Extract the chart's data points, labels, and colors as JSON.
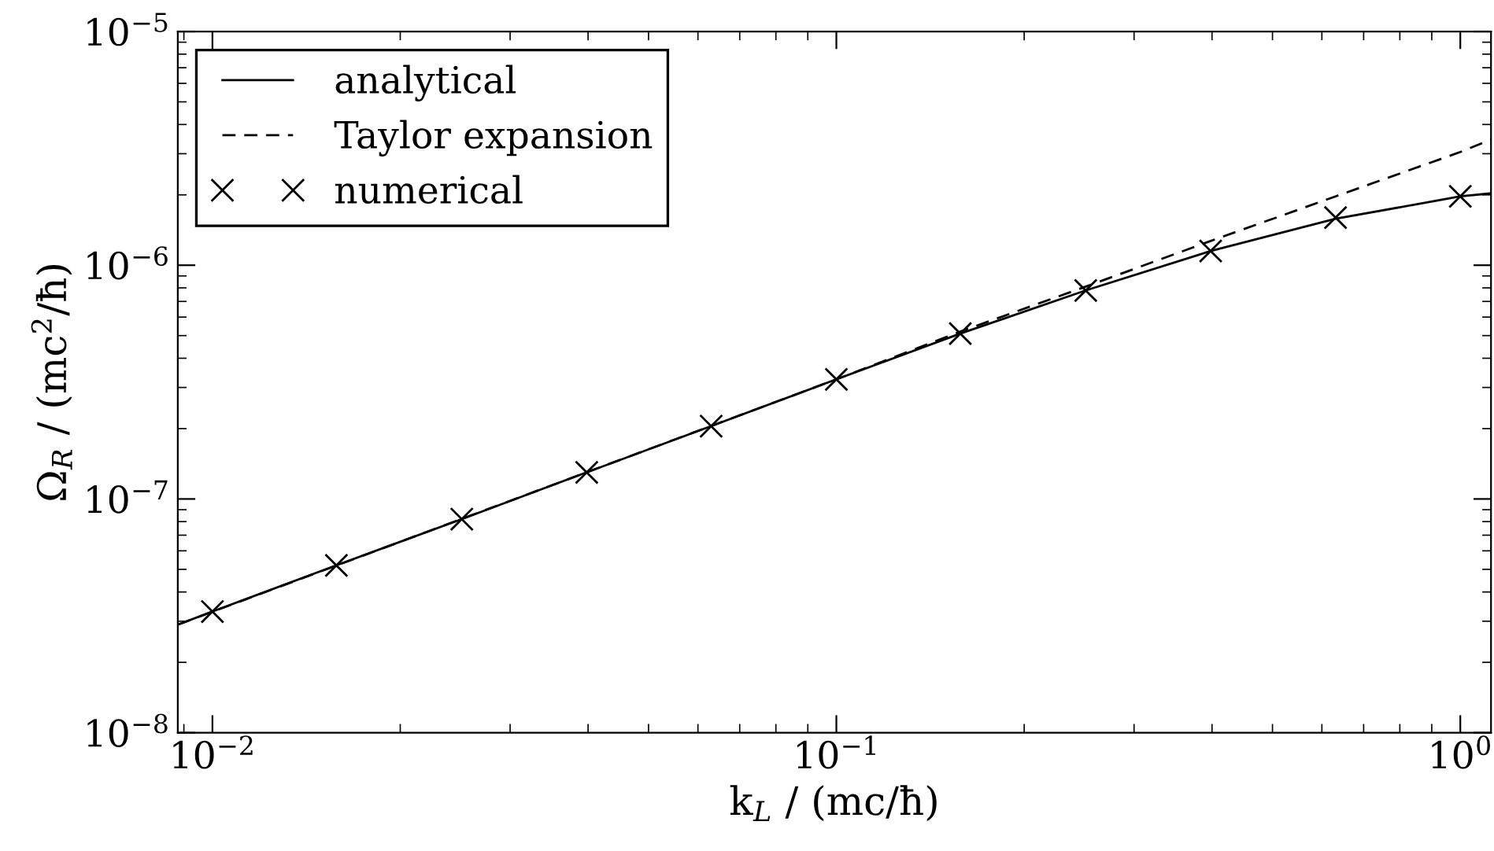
{
  "chart_data": {
    "type": "line",
    "xlabel": "k$_{L}$ / (mc/ħ)",
    "ylabel": "Ω$_{R}$ / (mc$^{2}$/ħ)",
    "log": "xy",
    "xlim": [
      0.0088,
      1.12
    ],
    "ylim": [
      1e-08,
      1e-05
    ],
    "xticks": [
      {
        "value": 0.01,
        "label": "10$^{−2}$"
      },
      {
        "value": 0.1,
        "label": "10$^{−1}$"
      },
      {
        "value": 1,
        "label": "10$^{0}$"
      }
    ],
    "yticks": [
      {
        "value": 1e-08,
        "label": "10$^{−8}$"
      },
      {
        "value": 1e-07,
        "label": "10$^{−7}$"
      },
      {
        "value": 1e-06,
        "label": "10$^{−6}$"
      },
      {
        "value": 1e-05,
        "label": "10$^{−5}$"
      }
    ],
    "legend": "top left",
    "grid": false,
    "series": [
      {
        "name": "analytical",
        "color": "#000000",
        "line_style": "solid",
        "marker": "none",
        "x": [
          0.0088,
          0.01,
          0.0158,
          0.0251,
          0.0398,
          0.063,
          0.1,
          0.158,
          0.251,
          0.398,
          0.631,
          1.0,
          1.12
        ],
        "values": [
          2.9e-08,
          3.3e-08,
          5.2e-08,
          8.2e-08,
          1.3e-07,
          2.05e-07,
          3.25e-07,
          5.1e-07,
          7.8e-07,
          1.15e-06,
          1.58e-06,
          1.97e-06,
          2.03e-06
        ]
      },
      {
        "name": "Taylor expansion",
        "color": "#000000",
        "line_style": "dashed",
        "marker": "none",
        "x": [
          0.0088,
          0.1,
          0.158,
          0.251,
          0.398,
          0.631,
          1.0,
          1.12
        ],
        "values": [
          2.9e-08,
          3.25e-07,
          5.2e-07,
          8.1e-07,
          1.27e-06,
          1.97e-06,
          3.05e-06,
          3.45e-06
        ]
      },
      {
        "name": "numerical",
        "type": "scatter",
        "color": "#000000",
        "marker": "cross",
        "x": [
          0.01,
          0.0158,
          0.0251,
          0.0398,
          0.063,
          0.1,
          0.158,
          0.251,
          0.398,
          0.631,
          1.0
        ],
        "values": [
          3.3e-08,
          5.2e-08,
          8.2e-08,
          1.3e-07,
          2.05e-07,
          3.25e-07,
          5.1e-07,
          7.8e-07,
          1.15e-06,
          1.6e-06,
          1.97e-06
        ]
      }
    ]
  }
}
